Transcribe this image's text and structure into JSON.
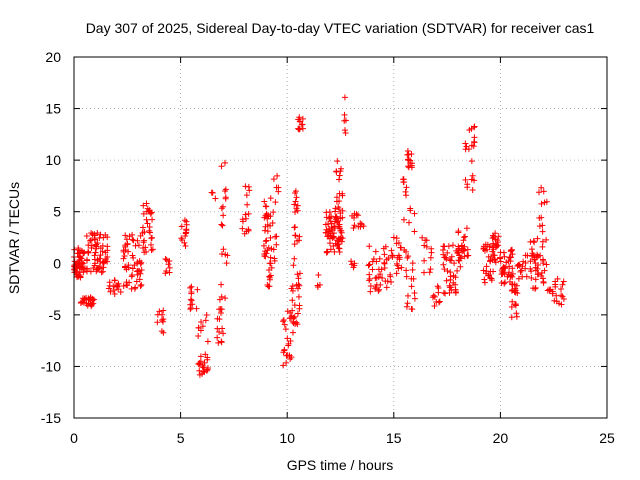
{
  "chart_data": {
    "type": "scatter",
    "title": "Day 307 of 2025, Sidereal Day-to-day VTEC variation (SDTVAR) for receiver cas1",
    "xlabel": "GPS time / hours",
    "ylabel": "SDTVAR / TECUs",
    "xlim": [
      0,
      25
    ],
    "ylim": [
      -15,
      20
    ],
    "xticks": [
      0,
      5,
      10,
      15,
      20,
      25
    ],
    "yticks": [
      -15,
      -10,
      -5,
      0,
      5,
      10,
      15,
      20
    ],
    "grid": true,
    "marker": "+",
    "color": "#ff0000",
    "series": [
      {
        "name": "SDTVAR",
        "clusters": [
          {
            "x": [
              0.0,
              0.5
            ],
            "y": [
              -1.5,
              1.5
            ],
            "n": 60
          },
          {
            "x": [
              0.3,
              1.0
            ],
            "y": [
              -4.2,
              -3.2
            ],
            "n": 25
          },
          {
            "x": [
              0.5,
              1.6
            ],
            "y": [
              -1.0,
              3.0
            ],
            "n": 70
          },
          {
            "x": [
              1.6,
              2.2
            ],
            "y": [
              -3.0,
              -1.5
            ],
            "n": 15
          },
          {
            "x": [
              2.3,
              3.2
            ],
            "y": [
              -2.5,
              2.8
            ],
            "n": 55
          },
          {
            "x": [
              3.2,
              3.7
            ],
            "y": [
              1.0,
              6.0
            ],
            "n": 30
          },
          {
            "x": [
              3.9,
              4.2
            ],
            "y": [
              -6.8,
              -4.5
            ],
            "n": 10
          },
          {
            "x": [
              4.2,
              4.5
            ],
            "y": [
              -1.0,
              0.5
            ],
            "n": 8
          },
          {
            "x": [
              5.0,
              5.3
            ],
            "y": [
              1.5,
              4.2
            ],
            "n": 14
          },
          {
            "x": [
              5.4,
              5.8
            ],
            "y": [
              -4.5,
              -0.5
            ],
            "n": 12
          },
          {
            "x": [
              5.8,
              6.3
            ],
            "y": [
              -11.0,
              -5.0
            ],
            "n": 30
          },
          {
            "x": [
              6.4,
              6.7
            ],
            "y": [
              6.0,
              7.0
            ],
            "n": 3
          },
          {
            "x": [
              6.7,
              7.1
            ],
            "y": [
              -8.0,
              -2.0
            ],
            "n": 18
          },
          {
            "x": [
              6.9,
              7.2
            ],
            "y": [
              0.0,
              10.0
            ],
            "n": 16
          },
          {
            "x": [
              7.8,
              8.3
            ],
            "y": [
              2.5,
              7.5
            ],
            "n": 15
          },
          {
            "x": [
              8.9,
              9.3
            ],
            "y": [
              -2.5,
              6.5
            ],
            "n": 40
          },
          {
            "x": [
              9.3,
              9.6
            ],
            "y": [
              0.0,
              8.5
            ],
            "n": 14
          },
          {
            "x": [
              9.8,
              10.3
            ],
            "y": [
              -10.0,
              -4.5
            ],
            "n": 25
          },
          {
            "x": [
              10.2,
              10.6
            ],
            "y": [
              -6.0,
              0.0
            ],
            "n": 25
          },
          {
            "x": [
              10.3,
              10.6
            ],
            "y": [
              0.0,
              8.0
            ],
            "n": 18
          },
          {
            "x": [
              10.5,
              10.8
            ],
            "y": [
              12.8,
              14.2
            ],
            "n": 12
          },
          {
            "x": [
              11.4,
              11.6
            ],
            "y": [
              -3.0,
              -1.0
            ],
            "n": 4
          },
          {
            "x": [
              11.8,
              12.6
            ],
            "y": [
              1.0,
              5.0
            ],
            "n": 70
          },
          {
            "x": [
              12.2,
              12.6
            ],
            "y": [
              5.0,
              10.0
            ],
            "n": 18
          },
          {
            "x": [
              12.6,
              12.8
            ],
            "y": [
              11.0,
              16.5
            ],
            "n": 6
          },
          {
            "x": [
              12.9,
              13.2
            ],
            "y": [
              -0.5,
              0.5
            ],
            "n": 5
          },
          {
            "x": [
              13.0,
              13.6
            ],
            "y": [
              3.0,
              5.0
            ],
            "n": 12
          },
          {
            "x": [
              13.8,
              14.4
            ],
            "y": [
              -3.0,
              2.0
            ],
            "n": 25
          },
          {
            "x": [
              14.4,
              15.0
            ],
            "y": [
              -2.5,
              2.0
            ],
            "n": 20
          },
          {
            "x": [
              15.0,
              15.6
            ],
            "y": [
              -1.0,
              3.0
            ],
            "n": 18
          },
          {
            "x": [
              15.4,
              15.6
            ],
            "y": [
              4.0,
              8.5
            ],
            "n": 8
          },
          {
            "x": [
              15.6,
              16.0
            ],
            "y": [
              9.0,
              11.0
            ],
            "n": 14
          },
          {
            "x": [
              15.6,
              16.0
            ],
            "y": [
              -5.0,
              5.5
            ],
            "n": 20
          },
          {
            "x": [
              16.3,
              16.8
            ],
            "y": [
              -1.0,
              2.5
            ],
            "n": 12
          },
          {
            "x": [
              16.8,
              17.2
            ],
            "y": [
              -4.5,
              -1.5
            ],
            "n": 10
          },
          {
            "x": [
              17.3,
              18.0
            ],
            "y": [
              -3.0,
              2.0
            ],
            "n": 40
          },
          {
            "x": [
              18.0,
              18.5
            ],
            "y": [
              -1.0,
              3.5
            ],
            "n": 30
          },
          {
            "x": [
              18.3,
              18.8
            ],
            "y": [
              6.5,
              13.8
            ],
            "n": 22
          },
          {
            "x": [
              19.2,
              19.8
            ],
            "y": [
              -2.0,
              2.0
            ],
            "n": 30
          },
          {
            "x": [
              19.6,
              20.0
            ],
            "y": [
              0.0,
              3.0
            ],
            "n": 20
          },
          {
            "x": [
              20.0,
              20.6
            ],
            "y": [
              -2.0,
              1.5
            ],
            "n": 40
          },
          {
            "x": [
              20.5,
              20.8
            ],
            "y": [
              -5.5,
              -2.0
            ],
            "n": 20
          },
          {
            "x": [
              20.8,
              21.3
            ],
            "y": [
              -1.5,
              1.0
            ],
            "n": 15
          },
          {
            "x": [
              21.4,
              21.8
            ],
            "y": [
              -2.5,
              2.5
            ],
            "n": 30
          },
          {
            "x": [
              21.8,
              22.2
            ],
            "y": [
              -2.0,
              7.5
            ],
            "n": 25
          },
          {
            "x": [
              22.2,
              22.5
            ],
            "y": [
              -3.0,
              -2.5
            ],
            "n": 6
          },
          {
            "x": [
              22.5,
              23.0
            ],
            "y": [
              -4.3,
              -1.5
            ],
            "n": 15
          }
        ]
      }
    ]
  }
}
